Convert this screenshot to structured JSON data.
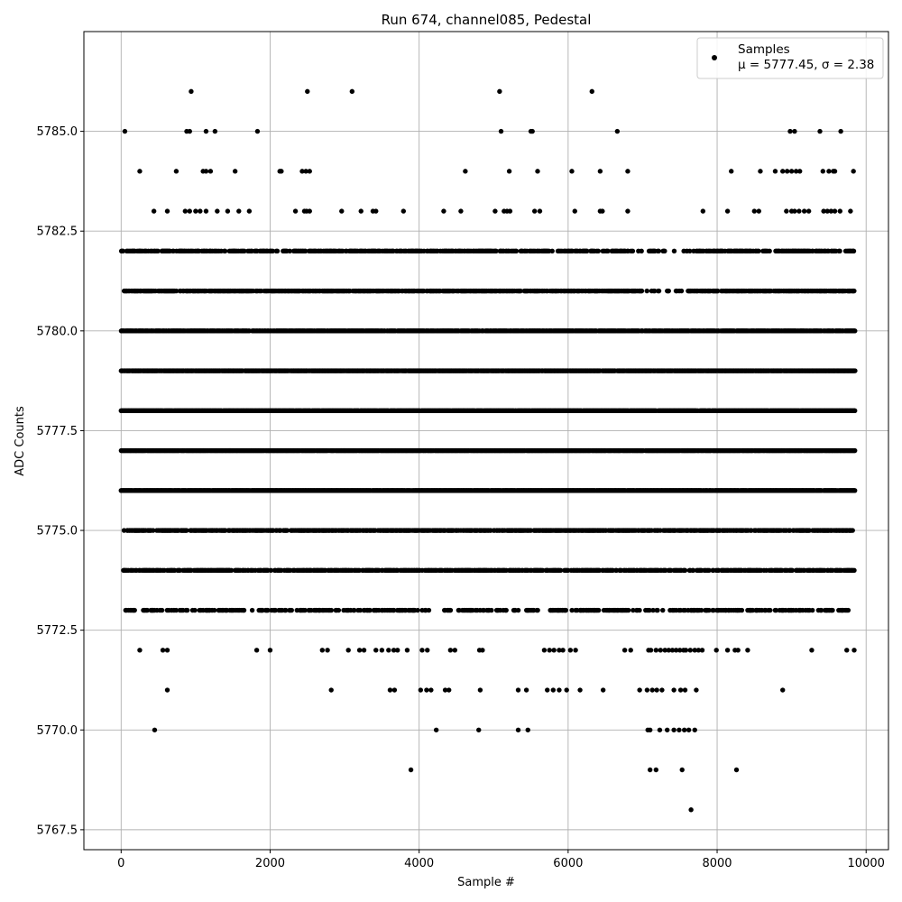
{
  "chart_data": {
    "type": "scatter",
    "title": "Run 674, channel085, Pedestal",
    "xlabel": "Sample #",
    "ylabel": "ADC Counts",
    "xlim": [
      -500,
      10300
    ],
    "ylim": [
      5767.0,
      5787.5
    ],
    "xticks": [
      0,
      2000,
      4000,
      6000,
      8000,
      10000
    ],
    "xtick_labels": [
      "0",
      "2000",
      "4000",
      "6000",
      "8000",
      "10000"
    ],
    "yticks": [
      5767.5,
      5770.0,
      5772.5,
      5775.0,
      5777.5,
      5780.0,
      5782.5,
      5785.0
    ],
    "ytick_labels": [
      "5767.5",
      "5770.0",
      "5772.5",
      "5775.0",
      "5777.5",
      "5780.0",
      "5782.5",
      "5785.0"
    ],
    "grid": true,
    "legend": {
      "placement": "top-right",
      "entries": [
        {
          "label": "Samples",
          "sublabel": "μ = 5777.45, σ = 2.38"
        }
      ]
    },
    "point_color": "#000000",
    "series": [
      {
        "name": "Samples",
        "x_range": [
          0,
          9850
        ],
        "levels": [
          {
            "y": 5786,
            "x": [
              940,
              2500,
              3100,
              5080,
              6320
            ]
          },
          {
            "y": 5785,
            "x": [
              50,
              880,
              920,
              1140,
              1260,
              1830,
              5100,
              5500,
              5520,
              6660,
              8980,
              9040,
              9380,
              9660
            ]
          },
          {
            "y": 5784,
            "x": [
              250,
              740,
              1100,
              1140,
              1200,
              1530,
              2130,
              2150,
              2430,
              2480,
              2530,
              4620,
              5210,
              5590,
              6050,
              6430,
              6800,
              8190,
              8580,
              8780,
              8880,
              8940,
              9000,
              9060,
              9110,
              9420,
              9500,
              9560,
              9580,
              9830
            ]
          },
          {
            "y": 5783,
            "x": [
              440,
              620,
              860,
              920,
              1000,
              1060,
              1140,
              1290,
              1430,
              1580,
              1720,
              2340,
              2460,
              2490,
              2530,
              2960,
              3220,
              3380,
              3420,
              3790,
              4330,
              4560,
              5020,
              5140,
              5180,
              5220,
              5550,
              5620,
              6090,
              6430,
              6460,
              6800,
              7810,
              8140,
              8500,
              8560,
              8930,
              9000,
              9040,
              9100,
              9170,
              9230,
              9430,
              9480,
              9530,
              9580,
              9650,
              9790
            ]
          },
          {
            "y": 5782,
            "x": [
              5,
              9850
            ],
            "density": 0.55,
            "gap": [
              6900,
              7750
            ]
          },
          {
            "y": 5781,
            "x": [
              30,
              9840
            ],
            "density": 0.7,
            "gap": [
              7000,
              7600
            ]
          },
          {
            "y": 5780,
            "x": [
              0,
              9850
            ],
            "density": 0.85
          },
          {
            "y": 5779,
            "x": [
              0,
              9850
            ],
            "density": 0.95
          },
          {
            "y": 5778,
            "x": [
              0,
              9850
            ],
            "density": 0.97
          },
          {
            "y": 5777,
            "x": [
              0,
              9850
            ],
            "density": 0.97
          },
          {
            "y": 5776,
            "x": [
              0,
              9850
            ],
            "density": 0.97
          },
          {
            "y": 5775,
            "x": [
              40,
              9840
            ],
            "density": 0.75
          },
          {
            "y": 5774,
            "x": [
              30,
              9840
            ],
            "density": 0.6
          },
          {
            "y": 5773,
            "x": [
              60,
              9780
            ],
            "density": 0.38
          },
          {
            "y": 5772,
            "x": [
              250,
              560,
              620,
              1820,
              2000,
              2700,
              2770,
              3050,
              3200,
              3260,
              3420,
              3500,
              3590,
              3660,
              3710,
              3840,
              4040,
              4110,
              4420,
              4480,
              4810,
              4850,
              5680,
              5750,
              5810,
              5880,
              5930,
              6030,
              6100,
              6760,
              6840,
              7080,
              7110,
              7180,
              7240,
              7300,
              7350,
              7400,
              7450,
              7500,
              7550,
              7580,
              7640,
              7700,
              7750,
              7800,
              7990,
              8140,
              8240,
              8280,
              8410,
              9270,
              9740,
              9840
            ]
          },
          {
            "y": 5771,
            "x": [
              620,
              2820,
              3610,
              3670,
              4020,
              4100,
              4160,
              4350,
              4400,
              4820,
              5330,
              5440,
              5720,
              5800,
              5880,
              5980,
              6160,
              6470,
              6960,
              7060,
              7130,
              7190,
              7260,
              7420,
              7510,
              7570,
              7720,
              8880
            ]
          },
          {
            "y": 5770,
            "x": [
              450,
              4230,
              4800,
              5330,
              5460,
              7070,
              7100,
              7230,
              7330,
              7420,
              7490,
              7560,
              7620,
              7700
            ]
          },
          {
            "y": 5769,
            "x": [
              3890,
              7100,
              7180,
              7530,
              8260
            ]
          },
          {
            "y": 5768,
            "x": [
              7650
            ]
          }
        ]
      }
    ]
  }
}
